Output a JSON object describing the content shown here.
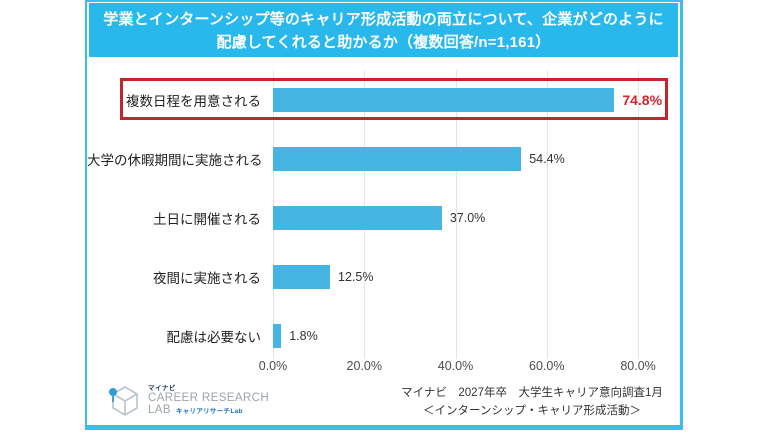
{
  "title_lines": [
    "学業とインターンシップ等のキャリア形成活動の両立について、企業がどのように",
    "配慮してくれると助かるか（複数回答/n=1,161）"
  ],
  "chart_data": {
    "type": "bar",
    "orientation": "horizontal",
    "title": "学業とインターンシップ等のキャリア形成活動の両立について、企業がどのように配慮してくれると助かるか（複数回答/n=1,161）",
    "n": "1,161",
    "categories": [
      "複数日程を用意される",
      "大学の休暇期間に実施される",
      "土日に開催される",
      "夜間に実施される",
      "配慮は必要ない"
    ],
    "values": [
      74.8,
      54.4,
      37.0,
      12.5,
      1.8
    ],
    "value_labels": [
      "74.8%",
      "54.4%",
      "37.0%",
      "12.5%",
      "1.8%"
    ],
    "highlighted_index": 0,
    "x_ticks": [
      "0.0%",
      "20.0%",
      "40.0%",
      "60.0%",
      "80.0%"
    ],
    "x_tick_values": [
      0,
      20,
      40,
      60,
      80
    ],
    "xlim": [
      0,
      87
    ],
    "grid": true,
    "legend": "none",
    "bar_color": "#45b5e4",
    "banner_color": "#29b8ec",
    "highlight_value_color": "#d7232a",
    "highlight_box_color": "#c3252b"
  },
  "footer": {
    "logo": {
      "brand_small": "マイナビ",
      "line1": "CAREER RESEARCH",
      "line2": "LAB",
      "line2_sub": "キャリアリサーチLab"
    },
    "source_line1": "マイナビ　2027年卒　大学生キャリア意向調査1月",
    "source_line2": "＜インターンシップ・キャリア形成活動＞"
  }
}
